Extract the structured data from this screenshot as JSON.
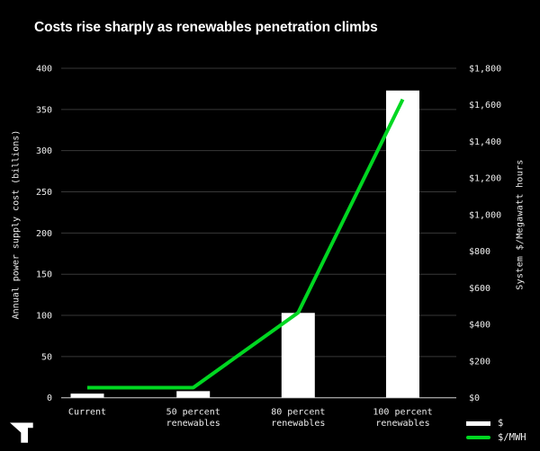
{
  "page": {
    "background": "#000000"
  },
  "header": {
    "title": "Costs rise sharply as renewables penetration climbs"
  },
  "logo": {
    "name": "publisher-t-logo",
    "color": "#ffffff"
  },
  "chart_data": {
    "type": "bar+line",
    "title": "Costs rise sharply as renewables penetration climbs",
    "categories": [
      "Current",
      "50 percent renewables",
      "80 percent renewables",
      "100 percent renewables"
    ],
    "category_label_lines": [
      [
        "Current"
      ],
      [
        "50 percent",
        "renewables"
      ],
      [
        "80 percent",
        "renewables"
      ],
      [
        "100 percent",
        "renewables"
      ]
    ],
    "series": [
      {
        "name": "$",
        "type": "bar",
        "axis": "left",
        "color": "#ffffff",
        "values": [
          5,
          8,
          103,
          373
        ]
      },
      {
        "name": "$/MWH",
        "type": "line",
        "axis": "right",
        "color": "#00d721",
        "values": [
          55,
          55,
          465,
          1630
        ]
      }
    ],
    "left_axis": {
      "label": "Annual power supply cost (billions)",
      "range": [
        0,
        400
      ],
      "tick_values": [
        0,
        50,
        100,
        150,
        200,
        250,
        300,
        350,
        400
      ],
      "tick_labels": [
        "0",
        "50",
        "100",
        "150",
        "200",
        "250",
        "300",
        "350",
        "400"
      ]
    },
    "right_axis": {
      "label": "System $/Megawatt hours",
      "range": [
        0,
        1800
      ],
      "tick_values": [
        0,
        200,
        400,
        600,
        800,
        1000,
        1200,
        1400,
        1600,
        1800
      ],
      "tick_labels": [
        "$0",
        "$200",
        "$400",
        "$600",
        "$800",
        "$1,000",
        "$1,200",
        "$1,400",
        "$1,600",
        "$1,800"
      ]
    },
    "grid": {
      "horizontal": true,
      "color": "#383838",
      "zero_line_color": "#9c9c9c"
    },
    "legend": {
      "position": "bottom-right",
      "entries": [
        {
          "label": "$",
          "swatch": "bar",
          "color": "#ffffff"
        },
        {
          "label": "$/MWH",
          "swatch": "line",
          "color": "#00d721"
        }
      ]
    }
  }
}
